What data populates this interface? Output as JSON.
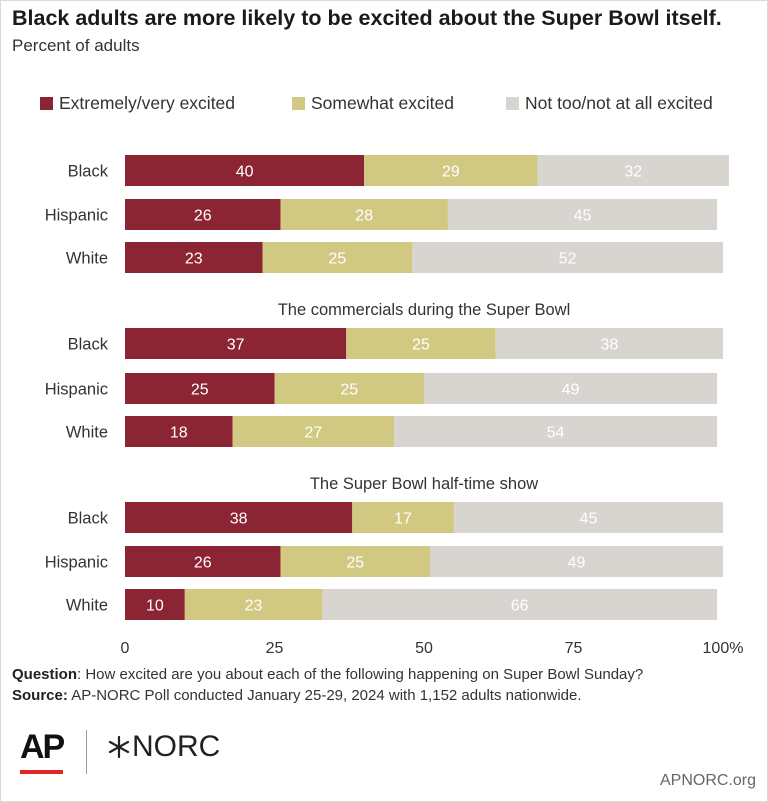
{
  "title": "Black adults are more likely to be excited about the Super Bowl itself.",
  "subtitle": "Percent of adults",
  "legend": [
    {
      "label": "Extremely/very excited",
      "color": "#8b2533"
    },
    {
      "label": "Somewhat excited",
      "color": "#d1c882"
    },
    {
      "label": "Not too/not at all excited",
      "color": "#d8d4cf"
    }
  ],
  "footer": {
    "question_label": "Question",
    "question_text": ": How excited are you about each of the following happening on Super Bowl Sunday?",
    "source_label": "Source:",
    "source_text": " AP-NORC Poll conducted January 25-29, 2024 with 1,152 adults nationwide.",
    "ap_logo": "AP",
    "norc_logo": "NORC",
    "site": "APNORC.org"
  },
  "chart_data": {
    "type": "bar",
    "orientation": "horizontal",
    "stacked": true,
    "xlim": [
      0,
      100
    ],
    "xticks": [
      "0",
      "25",
      "50",
      "75",
      "100%"
    ],
    "series_names": [
      "Extremely/very excited",
      "Somewhat excited",
      "Not too/not at all excited"
    ],
    "groups": [
      {
        "title": "",
        "rows": [
          {
            "label": "Black",
            "values": [
              40,
              29,
              32
            ]
          },
          {
            "label": "Hispanic",
            "values": [
              26,
              28,
              45
            ]
          },
          {
            "label": "White",
            "values": [
              23,
              25,
              52
            ]
          }
        ]
      },
      {
        "title": "The commercials during the Super Bowl",
        "rows": [
          {
            "label": "Black",
            "values": [
              37,
              25,
              38
            ]
          },
          {
            "label": "Hispanic",
            "values": [
              25,
              25,
              49
            ]
          },
          {
            "label": "White",
            "values": [
              18,
              27,
              54
            ]
          }
        ]
      },
      {
        "title": "The Super Bowl half-time show",
        "rows": [
          {
            "label": "Black",
            "values": [
              38,
              17,
              45
            ]
          },
          {
            "label": "Hispanic",
            "values": [
              26,
              25,
              49
            ]
          },
          {
            "label": "White",
            "values": [
              10,
              23,
              66
            ]
          }
        ]
      }
    ]
  }
}
